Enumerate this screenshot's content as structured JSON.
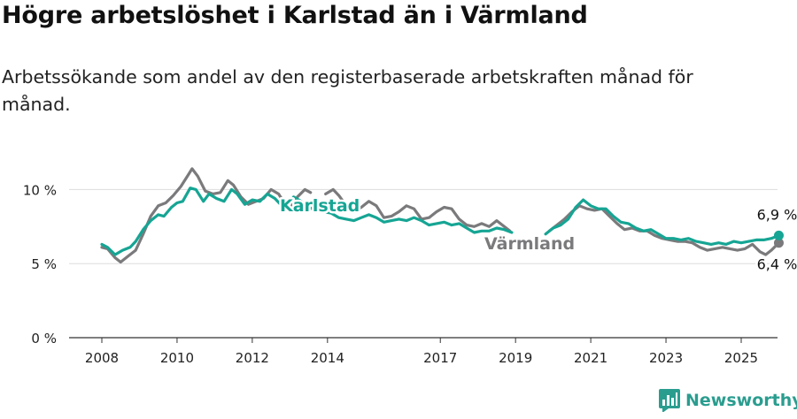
{
  "title": "Högre arbetslöshet i Karlstad än i Värmland",
  "subtitle": "Arbetssökande som andel av den registerbaserade arbetskraften månad för månad.",
  "brand": {
    "name": "Newsworthy",
    "logo_icon": "bar-chart-logo-icon"
  },
  "colors": {
    "karlstad": "#16a594",
    "varmland": "#7a7a7c",
    "grid": "#dddddd",
    "axis": "#333333"
  },
  "chart_data": {
    "type": "line",
    "ylim": [
      0,
      12
    ],
    "xlim": [
      2007.6,
      2025.95
    ],
    "y_ticks": [
      0,
      5,
      10
    ],
    "y_tick_labels": [
      "0 %",
      "5 %",
      "10 %"
    ],
    "x_ticks": [
      2008,
      2010,
      2012,
      2014,
      2017,
      2019,
      2021,
      2023,
      2025
    ],
    "x_tick_labels": [
      "2008",
      "2010",
      "2012",
      "2014",
      "2017",
      "2019",
      "2021",
      "2023",
      "2025"
    ],
    "series": [
      {
        "name": "Karlstad",
        "color": "#16a594",
        "end_label": "6,9 %",
        "segments": [
          [
            [
              2008.0,
              6.3
            ],
            [
              2008.15,
              6.1
            ],
            [
              2008.35,
              5.6
            ],
            [
              2008.55,
              5.9
            ],
            [
              2008.75,
              6.1
            ],
            [
              2008.9,
              6.5
            ],
            [
              2009.1,
              7.3
            ],
            [
              2009.3,
              7.9
            ],
            [
              2009.5,
              8.3
            ],
            [
              2009.65,
              8.2
            ],
            [
              2009.85,
              8.8
            ],
            [
              2010.0,
              9.1
            ],
            [
              2010.15,
              9.2
            ],
            [
              2010.35,
              10.1
            ],
            [
              2010.5,
              10.0
            ],
            [
              2010.7,
              9.2
            ],
            [
              2010.85,
              9.7
            ],
            [
              2011.05,
              9.4
            ],
            [
              2011.25,
              9.2
            ],
            [
              2011.45,
              10.0
            ],
            [
              2011.6,
              9.7
            ],
            [
              2011.8,
              9.0
            ],
            [
              2012.0,
              9.3
            ],
            [
              2012.2,
              9.2
            ],
            [
              2012.4,
              9.7
            ],
            [
              2012.6,
              9.4
            ],
            [
              2012.75,
              9.0
            ],
            [
              2012.9,
              8.8
            ],
            [
              2013.1,
              9.5
            ],
            [
              2013.3,
              9.2
            ],
            [
              2013.5,
              8.8
            ],
            [
              2013.7,
              8.6
            ],
            [
              2013.9,
              8.5
            ],
            [
              2014.1,
              8.4
            ],
            [
              2014.3,
              8.1
            ],
            [
              2014.5,
              8.0
            ],
            [
              2014.7,
              7.9
            ],
            [
              2014.9,
              8.1
            ],
            [
              2015.1,
              8.3
            ],
            [
              2015.3,
              8.1
            ],
            [
              2015.5,
              7.8
            ],
            [
              2015.7,
              7.9
            ],
            [
              2015.9,
              8.0
            ],
            [
              2016.1,
              7.9
            ],
            [
              2016.3,
              8.1
            ],
            [
              2016.5,
              7.9
            ],
            [
              2016.7,
              7.6
            ],
            [
              2016.9,
              7.7
            ],
            [
              2017.1,
              7.8
            ],
            [
              2017.3,
              7.6
            ],
            [
              2017.5,
              7.7
            ],
            [
              2017.7,
              7.4
            ],
            [
              2017.9,
              7.1
            ],
            [
              2018.1,
              7.2
            ],
            [
              2018.3,
              7.2
            ],
            [
              2018.5,
              7.4
            ],
            [
              2018.7,
              7.3
            ],
            [
              2018.9,
              7.1
            ]
          ],
          [
            [
              2019.8,
              7.0
            ],
            [
              2020.0,
              7.4
            ],
            [
              2020.2,
              7.6
            ],
            [
              2020.4,
              8.0
            ],
            [
              2020.6,
              8.8
            ],
            [
              2020.8,
              9.3
            ],
            [
              2021.0,
              8.9
            ],
            [
              2021.2,
              8.7
            ],
            [
              2021.4,
              8.7
            ],
            [
              2021.6,
              8.2
            ],
            [
              2021.8,
              7.8
            ],
            [
              2022.0,
              7.7
            ],
            [
              2022.2,
              7.4
            ],
            [
              2022.4,
              7.2
            ],
            [
              2022.6,
              7.3
            ],
            [
              2022.8,
              7.0
            ],
            [
              2023.0,
              6.7
            ],
            [
              2023.2,
              6.7
            ],
            [
              2023.4,
              6.6
            ],
            [
              2023.6,
              6.7
            ],
            [
              2023.8,
              6.5
            ],
            [
              2024.0,
              6.4
            ],
            [
              2024.2,
              6.3
            ],
            [
              2024.4,
              6.4
            ],
            [
              2024.6,
              6.3
            ],
            [
              2024.8,
              6.5
            ],
            [
              2025.0,
              6.4
            ],
            [
              2025.2,
              6.5
            ],
            [
              2025.4,
              6.6
            ],
            [
              2025.6,
              6.6
            ],
            [
              2025.8,
              6.7
            ],
            [
              2026.0,
              6.9
            ]
          ]
        ]
      },
      {
        "name": "Värmland",
        "color": "#7a7a7c",
        "end_label": "6,4 %",
        "segments": [
          [
            [
              2008.0,
              6.1
            ],
            [
              2008.15,
              6.0
            ],
            [
              2008.35,
              5.4
            ],
            [
              2008.5,
              5.1
            ],
            [
              2008.7,
              5.5
            ],
            [
              2008.9,
              5.9
            ],
            [
              2009.1,
              7.0
            ],
            [
              2009.3,
              8.2
            ],
            [
              2009.5,
              8.9
            ],
            [
              2009.7,
              9.1
            ],
            [
              2009.9,
              9.6
            ],
            [
              2010.1,
              10.2
            ],
            [
              2010.3,
              11.0
            ],
            [
              2010.4,
              11.4
            ],
            [
              2010.55,
              10.9
            ],
            [
              2010.75,
              9.9
            ],
            [
              2010.95,
              9.7
            ],
            [
              2011.15,
              9.8
            ],
            [
              2011.35,
              10.6
            ],
            [
              2011.5,
              10.3
            ],
            [
              2011.7,
              9.5
            ],
            [
              2011.9,
              9.0
            ],
            [
              2012.1,
              9.2
            ],
            [
              2012.3,
              9.4
            ],
            [
              2012.5,
              10.0
            ],
            [
              2012.7,
              9.7
            ],
            [
              2012.85,
              9.1
            ],
            [
              2013.0,
              8.7
            ],
            [
              2013.2,
              9.5
            ],
            [
              2013.4,
              10.0
            ],
            [
              2013.55,
              9.8
            ]
          ],
          [
            [
              2013.95,
              9.7
            ],
            [
              2014.15,
              10.0
            ],
            [
              2014.3,
              9.6
            ],
            [
              2014.5,
              8.9
            ],
            [
              2014.7,
              8.5
            ],
            [
              2014.9,
              8.8
            ],
            [
              2015.1,
              9.2
            ],
            [
              2015.3,
              8.9
            ],
            [
              2015.5,
              8.1
            ],
            [
              2015.7,
              8.2
            ],
            [
              2015.9,
              8.5
            ],
            [
              2016.1,
              8.9
            ],
            [
              2016.3,
              8.7
            ],
            [
              2016.5,
              8.0
            ],
            [
              2016.7,
              8.1
            ],
            [
              2016.9,
              8.5
            ],
            [
              2017.1,
              8.8
            ],
            [
              2017.3,
              8.7
            ],
            [
              2017.5,
              8.0
            ],
            [
              2017.7,
              7.6
            ],
            [
              2017.9,
              7.5
            ],
            [
              2018.1,
              7.7
            ],
            [
              2018.3,
              7.5
            ],
            [
              2018.5,
              7.9
            ],
            [
              2018.65,
              7.6
            ],
            [
              2018.85,
              7.2
            ]
          ],
          [
            [
              2019.9,
              7.2
            ],
            [
              2020.1,
              7.6
            ],
            [
              2020.3,
              8.0
            ],
            [
              2020.5,
              8.5
            ],
            [
              2020.7,
              8.9
            ],
            [
              2020.9,
              8.7
            ],
            [
              2021.1,
              8.6
            ],
            [
              2021.3,
              8.7
            ],
            [
              2021.5,
              8.2
            ],
            [
              2021.7,
              7.7
            ],
            [
              2021.9,
              7.3
            ],
            [
              2022.1,
              7.4
            ],
            [
              2022.3,
              7.2
            ],
            [
              2022.5,
              7.2
            ],
            [
              2022.7,
              6.9
            ],
            [
              2022.9,
              6.7
            ],
            [
              2023.1,
              6.6
            ],
            [
              2023.3,
              6.5
            ],
            [
              2023.5,
              6.5
            ],
            [
              2023.7,
              6.4
            ],
            [
              2023.9,
              6.1
            ],
            [
              2024.1,
              5.9
            ],
            [
              2024.3,
              6.0
            ],
            [
              2024.5,
              6.1
            ],
            [
              2024.7,
              6.0
            ],
            [
              2024.9,
              5.9
            ],
            [
              2025.1,
              6.0
            ],
            [
              2025.3,
              6.3
            ],
            [
              2025.5,
              5.8
            ],
            [
              2025.65,
              5.6
            ],
            [
              2025.8,
              5.9
            ],
            [
              2026.0,
              6.4
            ]
          ]
        ]
      }
    ]
  }
}
